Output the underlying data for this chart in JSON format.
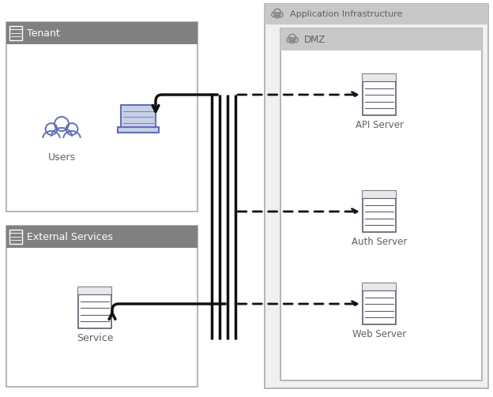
{
  "bg_color": "#ffffff",
  "border_color": "#b0b0b0",
  "tenant_header_color": "#808080",
  "ext_header_color": "#808080",
  "app_infra_header_color": "#c8c8c8",
  "dmz_header_color": "#c8c8c8",
  "app_infra_bg": "#f0f0f0",
  "dmz_bg": "#ffffff",
  "text_color": "#606060",
  "header_text_white": "#ffffff",
  "server_edge_color": "#5a6070",
  "users_color": "#6070b8",
  "laptop_fill": "#c8d0e8",
  "laptop_edge": "#6070b8",
  "arrow_color": "#111111",
  "title_app_infra": "Application Infrastructure",
  "title_dmz": "DMZ",
  "title_tenant": "Tenant",
  "title_ext_services": "External Services",
  "label_users": "Users",
  "label_service": "Service",
  "label_api": "API Server",
  "label_auth": "Auth Server",
  "label_web": "Web Server",
  "figsize": [
    6.24,
    5.03
  ],
  "dpi": 100
}
